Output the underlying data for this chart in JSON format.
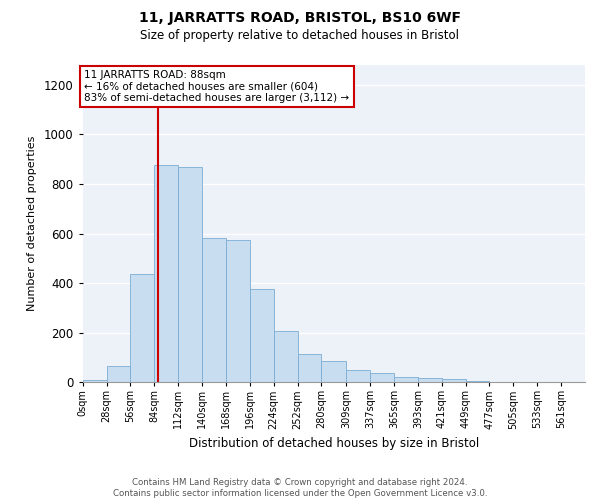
{
  "title": "11, JARRATTS ROAD, BRISTOL, BS10 6WF",
  "subtitle": "Size of property relative to detached houses in Bristol",
  "xlabel": "Distribution of detached houses by size in Bristol",
  "ylabel": "Number of detached properties",
  "bin_labels": [
    "0sqm",
    "28sqm",
    "56sqm",
    "84sqm",
    "112sqm",
    "140sqm",
    "168sqm",
    "196sqm",
    "224sqm",
    "252sqm",
    "280sqm",
    "309sqm",
    "337sqm",
    "365sqm",
    "393sqm",
    "421sqm",
    "449sqm",
    "477sqm",
    "505sqm",
    "533sqm",
    "561sqm"
  ],
  "bin_edges": [
    0,
    28,
    56,
    84,
    112,
    140,
    168,
    196,
    224,
    252,
    280,
    309,
    337,
    365,
    393,
    421,
    449,
    477,
    505,
    533,
    561,
    589
  ],
  "heights": [
    10,
    65,
    435,
    875,
    870,
    580,
    575,
    375,
    205,
    115,
    85,
    50,
    38,
    20,
    18,
    12,
    5,
    2,
    1,
    0,
    0
  ],
  "bar_color": "#c8ddf0",
  "bar_edge_color": "#7aadd4",
  "vline_x": 88,
  "vline_color": "#cc0000",
  "annotation_text": "11 JARRATTS ROAD: 88sqm\n← 16% of detached houses are smaller (604)\n83% of semi-detached houses are larger (3,112) →",
  "annotation_box_edge": "#cc0000",
  "ylim_max": 1280,
  "yticks": [
    0,
    200,
    400,
    600,
    800,
    1000,
    1200
  ],
  "background_color": "#edf2f9",
  "grid_color": "#ffffff",
  "footer": "Contains HM Land Registry data © Crown copyright and database right 2024.\nContains public sector information licensed under the Open Government Licence v3.0."
}
